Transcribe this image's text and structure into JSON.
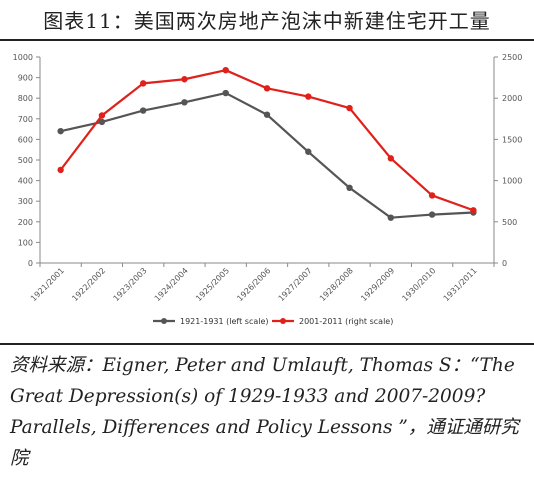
{
  "figure": {
    "title": "图表11：美国两次房地产泡沫中新建住宅开工量",
    "source_label": "资料来源：",
    "source_text": "Eigner, Peter and Umlauft, Thomas S：“The Great Depression(s) of 1929-1933 and 2007-2009? Parallels, Differences and Policy Lessons ”，",
    "source_org": "通证通研究院"
  },
  "chart_data": {
    "type": "line",
    "categories": [
      "1921/2001",
      "1922/2002",
      "1923/2003",
      "1924/2004",
      "1925/2005",
      "1926/2006",
      "1927/2007",
      "1928/2008",
      "1929/2009",
      "1930/2010",
      "1931/2011"
    ],
    "series": [
      {
        "name": "1921-1931 (left scale)",
        "axis": "left",
        "color": "#555555",
        "values": [
          640,
          685,
          740,
          780,
          825,
          720,
          540,
          365,
          220,
          235,
          245
        ]
      },
      {
        "name": "2001-2011 (right scale)",
        "axis": "right",
        "color": "#e0201b",
        "values": [
          1130,
          1790,
          2180,
          2230,
          2340,
          2120,
          2020,
          1880,
          1270,
          820,
          640
        ]
      }
    ],
    "y_left": {
      "min": 0,
      "max": 1000,
      "ticks": [
        0,
        100,
        200,
        300,
        400,
        500,
        600,
        700,
        800,
        900,
        1000
      ]
    },
    "y_right": {
      "min": 0,
      "max": 2500,
      "ticks": [
        0,
        500,
        1000,
        1500,
        2000,
        2500
      ]
    },
    "legend_position": "bottom-center",
    "grid": false
  }
}
